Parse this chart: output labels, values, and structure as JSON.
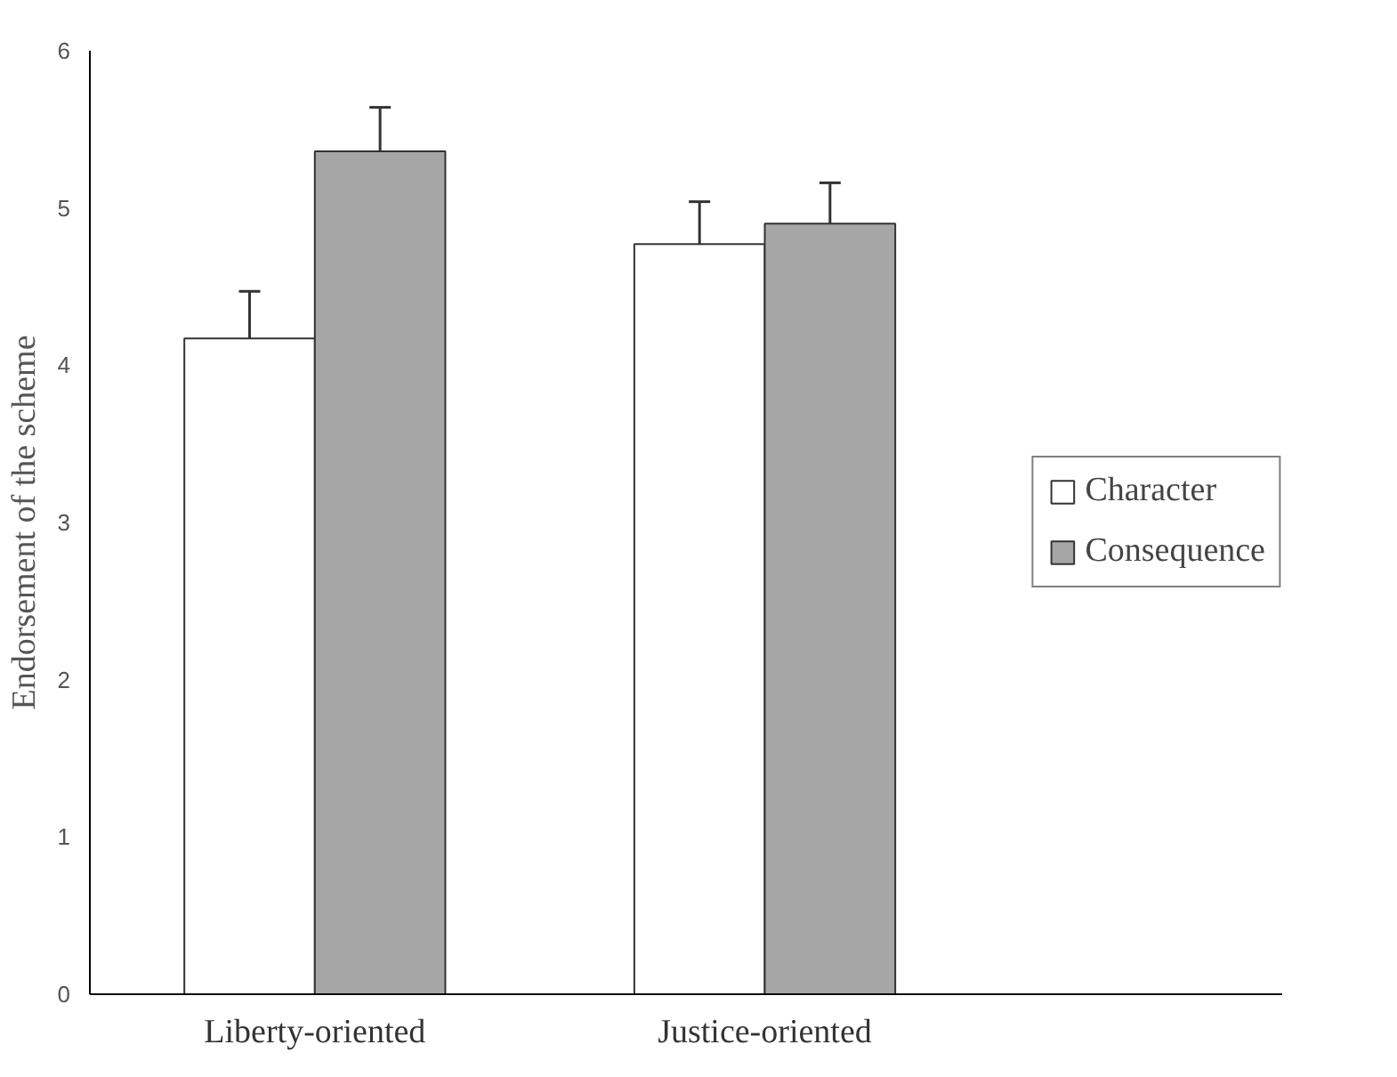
{
  "chart_data": {
    "type": "bar",
    "ylabel": "Endorsement of the scheme",
    "categories": [
      "Liberty-oriented",
      "Justice-oriented"
    ],
    "series": [
      {
        "name": "Character",
        "color": "#ffffff",
        "values": [
          4.17,
          4.77
        ],
        "errors": [
          [
            4.17,
            4.47
          ],
          [
            4.77,
            5.04
          ]
        ]
      },
      {
        "name": "Consequence",
        "color": "#a6a6a6",
        "values": [
          5.36,
          4.9
        ],
        "errors": [
          [
            5.36,
            5.64
          ],
          [
            4.9,
            5.16
          ]
        ]
      }
    ],
    "ylim": [
      0,
      6
    ],
    "yticks": [
      0,
      1,
      2,
      3,
      4,
      5,
      6
    ],
    "grid": false,
    "legend": "right"
  }
}
